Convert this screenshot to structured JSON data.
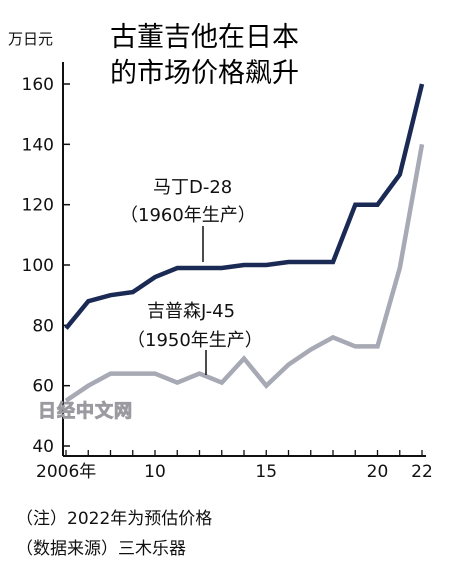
{
  "chart_data": {
    "type": "line",
    "title_lines": [
      "古董吉他在日本",
      "的市场价格飙升"
    ],
    "ylabel": "万日元",
    "ylim": [
      40,
      170
    ],
    "yticks": [
      40,
      60,
      80,
      100,
      120,
      140,
      160
    ],
    "xlim": [
      2006,
      2022
    ],
    "x": [
      2006,
      2007,
      2008,
      2009,
      2010,
      2011,
      2012,
      2013,
      2014,
      2015,
      2016,
      2017,
      2018,
      2019,
      2020,
      2021,
      2022
    ],
    "xtick_labels": [
      {
        "x": 2006,
        "label": "2006年"
      },
      {
        "x": 2010,
        "label": "10"
      },
      {
        "x": 2015,
        "label": "15"
      },
      {
        "x": 2020,
        "label": "20"
      },
      {
        "x": 2022,
        "label": "22"
      }
    ],
    "series": [
      {
        "name": "马丁D-28",
        "subname": "（1960年生产）",
        "color": "#1b2a55",
        "values": [
          79,
          88,
          90,
          91,
          96,
          99,
          99,
          99,
          100,
          100,
          101,
          101,
          101,
          120,
          120,
          130,
          160
        ]
      },
      {
        "name": "吉普森J-45",
        "subname": "（1950年生产）",
        "color": "#a7a9b4",
        "values": [
          55,
          60,
          64,
          64,
          64,
          61,
          64,
          61,
          69,
          60,
          67,
          72,
          76,
          73,
          73,
          99,
          140
        ]
      }
    ],
    "grid": false,
    "legend": "inline labels"
  },
  "notes": {
    "note1": "（注）2022年为预估价格",
    "source": "（数据来源）三木乐器"
  },
  "watermark": "日经中文网"
}
